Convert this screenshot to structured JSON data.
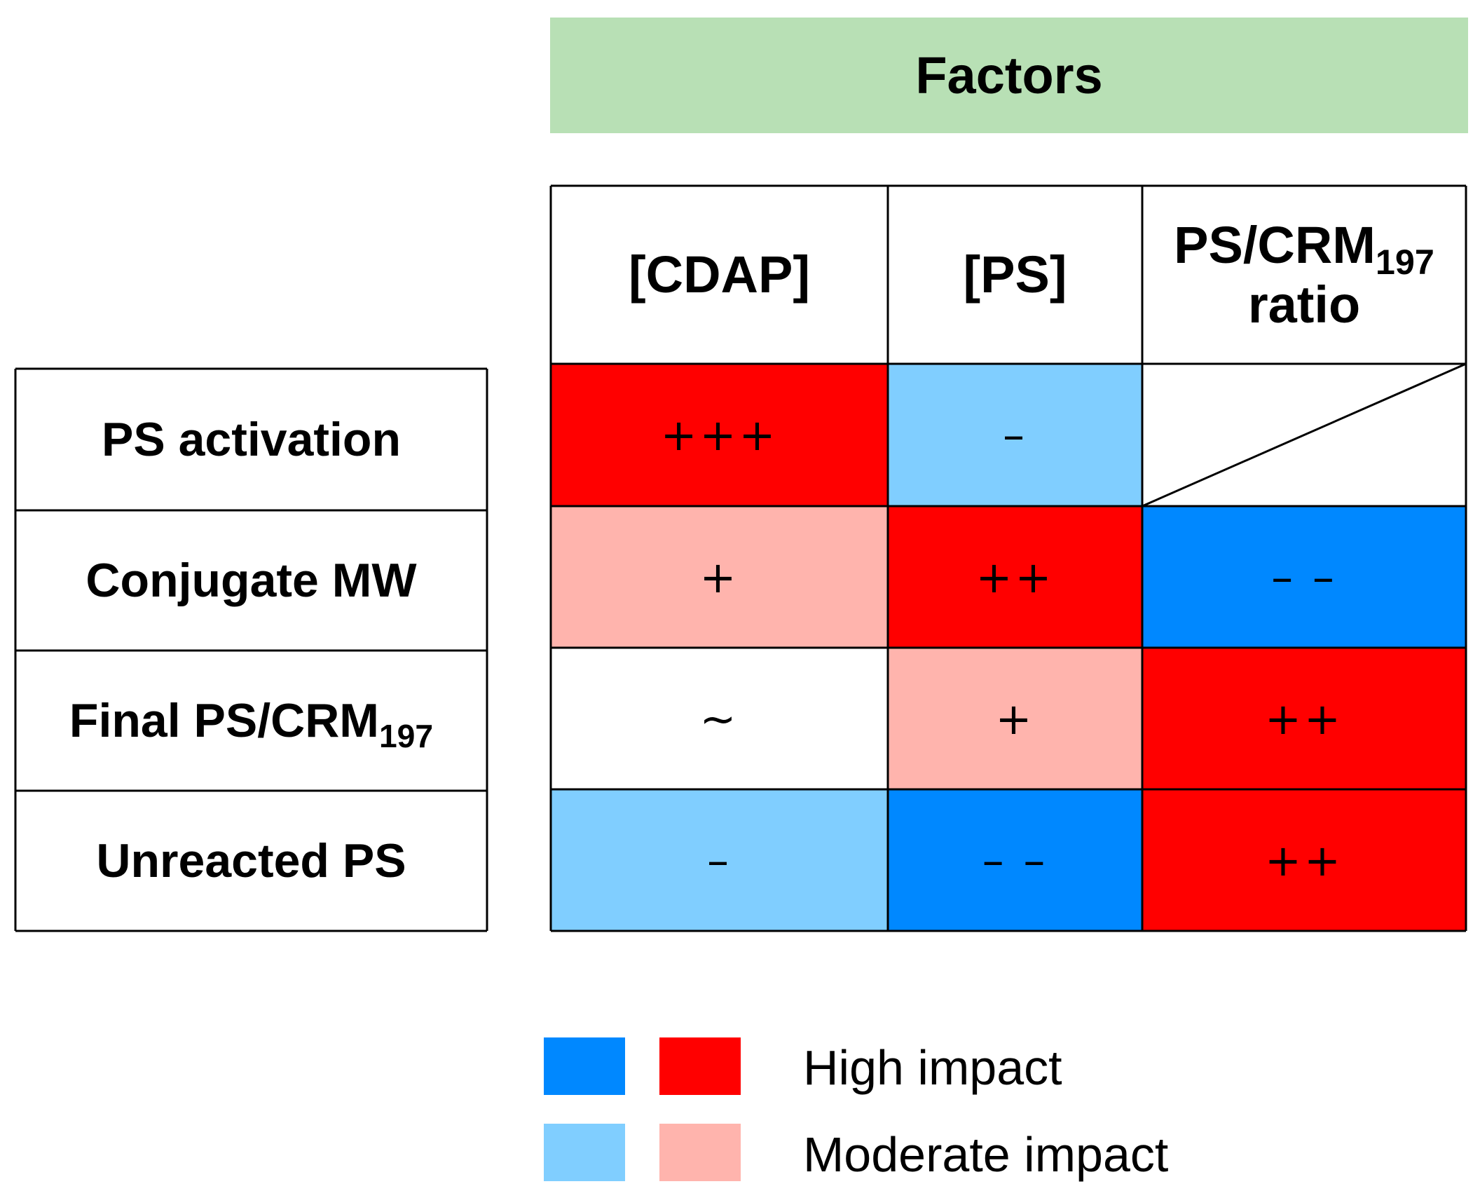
{
  "banner": {
    "title": "Factors"
  },
  "columns": [
    {
      "label": "[CDAP]"
    },
    {
      "label": "[PS]"
    },
    {
      "label": "PS/CRM",
      "subscript": "197",
      "label_line2": "ratio"
    }
  ],
  "rows": [
    {
      "label": "PS activation"
    },
    {
      "label": "Conjugate MW"
    },
    {
      "label": "Final PS/CRM",
      "subscript": "197"
    },
    {
      "label": "Unreacted PS"
    }
  ],
  "cells": [
    [
      {
        "mark": "+++",
        "impact": "high",
        "direction": "positive"
      },
      {
        "mark": "–",
        "impact": "moderate",
        "direction": "negative"
      },
      {
        "mark": "",
        "impact": "none",
        "direction": "not-applicable"
      }
    ],
    [
      {
        "mark": "+",
        "impact": "moderate",
        "direction": "positive"
      },
      {
        "mark": "++",
        "impact": "high",
        "direction": "positive"
      },
      {
        "mark": "– –",
        "impact": "high",
        "direction": "negative"
      }
    ],
    [
      {
        "mark": "~",
        "impact": "none",
        "direction": "neutral"
      },
      {
        "mark": "+",
        "impact": "moderate",
        "direction": "positive"
      },
      {
        "mark": "++",
        "impact": "high",
        "direction": "positive"
      }
    ],
    [
      {
        "mark": "–",
        "impact": "moderate",
        "direction": "negative"
      },
      {
        "mark": "– –",
        "impact": "high",
        "direction": "negative"
      },
      {
        "mark": "++",
        "impact": "high",
        "direction": "positive"
      }
    ]
  ],
  "colors": {
    "banner": "#b8e0b5",
    "high_positive": "#ff0000",
    "moderate_positive": "#ffb4ad",
    "high_negative": "#0088ff",
    "moderate_negative": "#80ceff",
    "none": "#ffffff"
  },
  "legend": {
    "high_label": "High impact",
    "moderate_label": "Moderate impact"
  }
}
